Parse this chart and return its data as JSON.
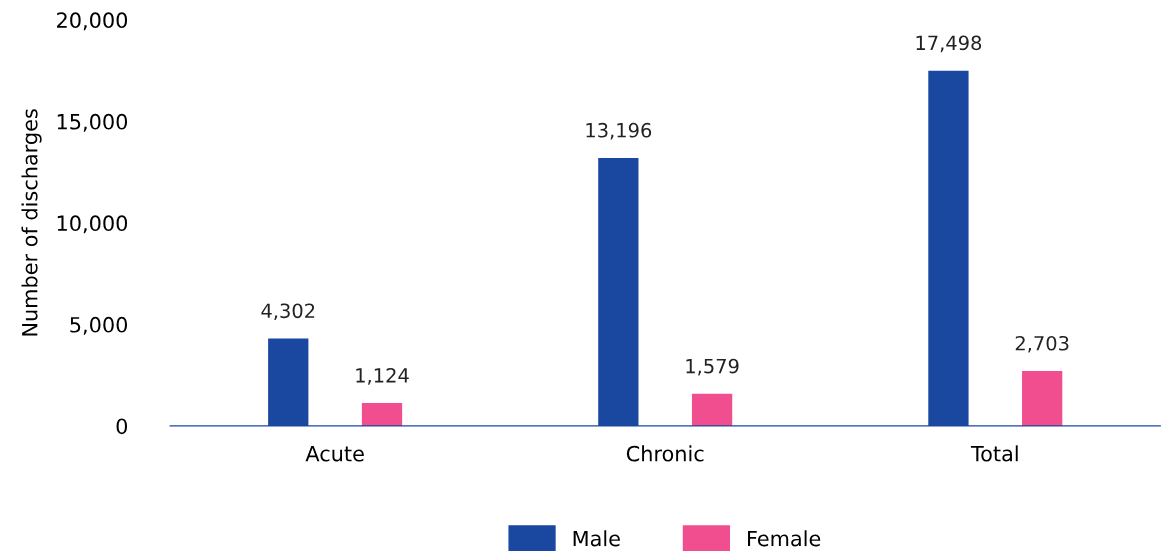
{
  "chart_data": {
    "type": "bar",
    "ylabel": "Number of discharges",
    "categories": [
      "Acute",
      "Chronic",
      "Total"
    ],
    "series": [
      {
        "name": "Male",
        "color": "#1a479f",
        "values": [
          4302,
          13196,
          17498
        ],
        "value_labels": [
          "4,302",
          "13,196",
          "17,498"
        ]
      },
      {
        "name": "Female",
        "color": "#f04e8f",
        "values": [
          1124,
          1579,
          2703
        ],
        "value_labels": [
          "1,124",
          "1,579",
          "2,703"
        ]
      }
    ],
    "ylim": [
      0,
      20000
    ],
    "yticks": [
      0,
      {
        "value": 5000,
        "label": "5,000"
      },
      {
        "value": 10000,
        "label": "10,000"
      },
      {
        "value": 15000,
        "label": "15,000"
      },
      {
        "value": 20000,
        "label": "20,000"
      }
    ],
    "grid": false,
    "legend": "bottom"
  }
}
